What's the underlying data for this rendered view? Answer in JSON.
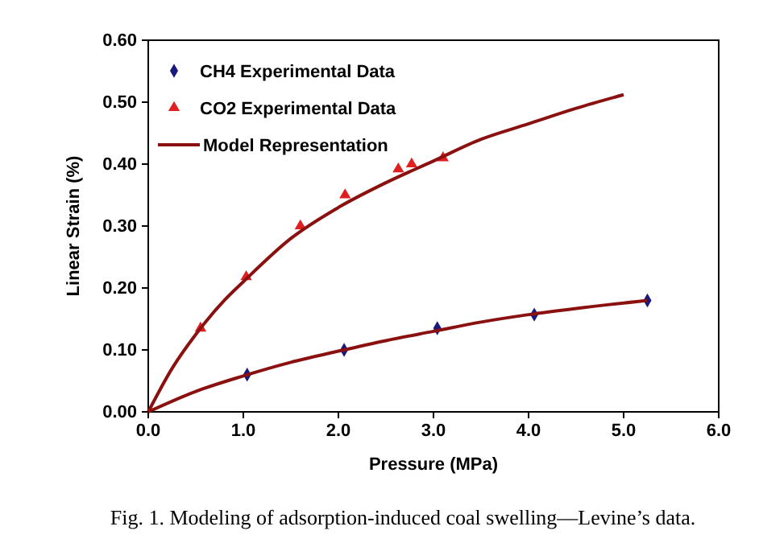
{
  "chart_data": {
    "type": "scatter",
    "xlabel": "Pressure (MPa)",
    "ylabel": "Linear Strain (%)",
    "xlim": [
      0,
      6
    ],
    "ylim": [
      0,
      0.6
    ],
    "xticks": [
      {
        "value": 0,
        "label": "0.0"
      },
      {
        "value": 1,
        "label": "1.0"
      },
      {
        "value": 2,
        "label": "2.0"
      },
      {
        "value": 3,
        "label": "3.0"
      },
      {
        "value": 4,
        "label": "4.0"
      },
      {
        "value": 5,
        "label": "5.0"
      },
      {
        "value": 6,
        "label": "6.0"
      }
    ],
    "yticks": [
      {
        "value": 0,
        "label": "0.00"
      },
      {
        "value": 0.1,
        "label": "0.10"
      },
      {
        "value": 0.2,
        "label": "0.20"
      },
      {
        "value": 0.3,
        "label": "0.30"
      },
      {
        "value": 0.4,
        "label": "0.40"
      },
      {
        "value": 0.5,
        "label": "0.50"
      },
      {
        "value": 0.6,
        "label": "0.60"
      }
    ],
    "legend": "top left",
    "grid": false,
    "series": [
      {
        "name": "CH4 Experimental Data",
        "marker": "diamond",
        "color": "#1a1a7a",
        "x": [
          1.04,
          2.06,
          3.04,
          4.06,
          5.25
        ],
        "values": [
          0.06,
          0.1,
          0.135,
          0.157,
          0.18
        ]
      },
      {
        "name": "CO2 Experimental Data",
        "marker": "triangle",
        "color": "#e02020",
        "x": [
          0.55,
          1.03,
          1.6,
          2.07,
          2.63,
          2.77,
          3.1
        ],
        "values": [
          0.135,
          0.218,
          0.3,
          0.35,
          0.392,
          0.4,
          0.41
        ]
      },
      {
        "name": "Model Representation",
        "type": "line",
        "marker": "none",
        "color": "#8b1010",
        "x": [
          0,
          0.25,
          0.5,
          0.8,
          1,
          1.5,
          2,
          2.5,
          3,
          3.5,
          4,
          4.5,
          5
        ],
        "values": [
          0,
          0.07,
          0.125,
          0.18,
          0.21,
          0.28,
          0.33,
          0.37,
          0.405,
          0.44,
          0.465,
          0.49,
          0.512
        ]
      },
      {
        "type": "line",
        "marker": "none",
        "color": "#8b1010",
        "x": [
          0,
          0.5,
          1,
          1.5,
          2,
          2.5,
          3,
          3.5,
          4,
          4.5,
          5.25
        ],
        "values": [
          0,
          0.033,
          0.058,
          0.08,
          0.098,
          0.115,
          0.13,
          0.145,
          0.157,
          0.167,
          0.18
        ]
      }
    ],
    "annotations": [
      "Fig. 1. Modeling of adsorption-induced coal swelling—Levine’s data."
    ]
  }
}
